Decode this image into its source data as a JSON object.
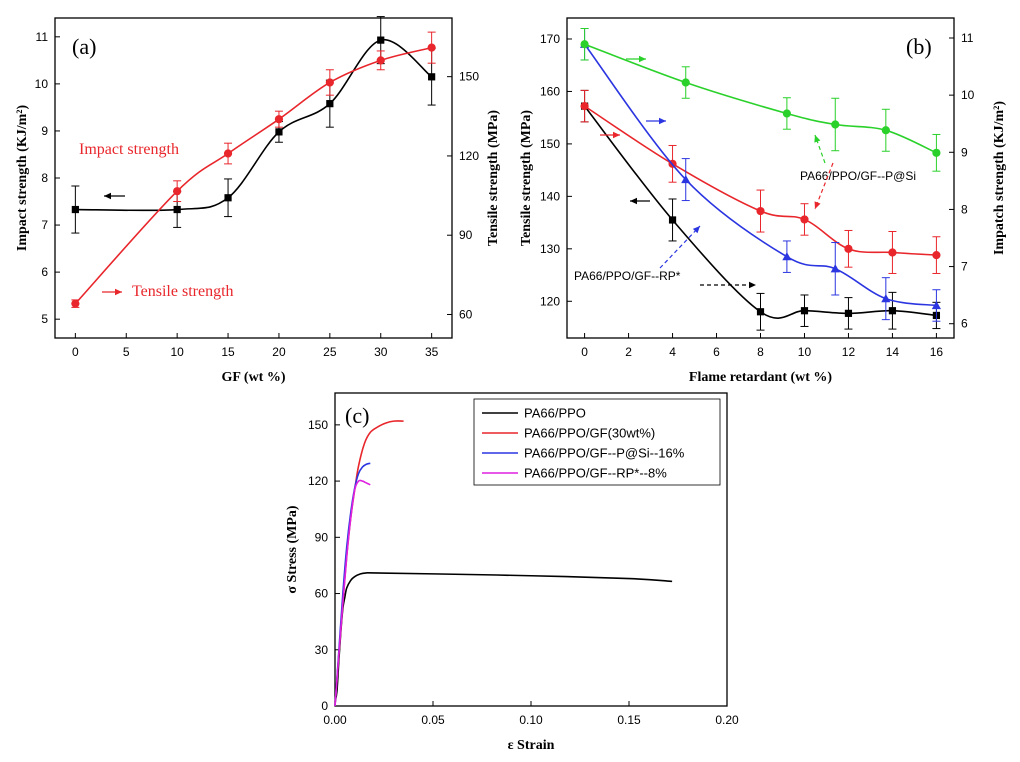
{
  "chart_data": [
    {
      "panel": "(a)",
      "type": "line",
      "xlabel": "GF (wt %)",
      "ylabel_left": "Impact strength (KJ/m²)",
      "ylabel_right": "Tensile strength (MPa)",
      "xlim": [
        -2,
        37
      ],
      "ylim_left": [
        4.6,
        11.4
      ],
      "ylim_right": [
        51.1,
        172.2
      ],
      "xticks": [
        0,
        5,
        10,
        15,
        20,
        25,
        30,
        35
      ],
      "yticks_left": [
        5,
        6,
        7,
        8,
        9,
        10,
        11
      ],
      "yticks_right": [
        60,
        90,
        120,
        150
      ],
      "series": [
        {
          "axis": "left",
          "color": "#000000",
          "marker": "square",
          "x": [
            0,
            10,
            15,
            20,
            25,
            30,
            35
          ],
          "y": [
            7.33,
            7.33,
            7.58,
            8.98,
            9.58,
            10.93,
            10.15
          ],
          "err": [
            0.5,
            0.38,
            0.4,
            0.22,
            0.5,
            0.5,
            0.6
          ]
        },
        {
          "axis": "left",
          "color": "#e8262b",
          "marker": "circle",
          "x": [
            0,
            10,
            15,
            20,
            25,
            30,
            35
          ],
          "y": [
            5.33,
            7.72,
            8.52,
            9.25,
            10.03,
            10.5,
            10.77
          ],
          "err": [
            0.08,
            0.22,
            0.22,
            0.17,
            0.27,
            0.2,
            0.33
          ]
        }
      ],
      "annotations": [
        {
          "text": "Impact strength",
          "color": "#e8262b"
        },
        {
          "text": "Tensile strength",
          "color": "#e8262b"
        }
      ]
    },
    {
      "panel": "(b)",
      "type": "line",
      "xlabel": "Flame retardant (wt %)",
      "ylabel_left": "Tensile strength (MPa)",
      "ylabel_right": "Impatch strength (KJ/m²)",
      "xlim": [
        -0.8,
        16.8
      ],
      "ylim_left": [
        113,
        174
      ],
      "ylim_right": [
        5.75,
        11.35
      ],
      "xticks": [
        0,
        2,
        4,
        6,
        8,
        10,
        12,
        14,
        16
      ],
      "yticks_left": [
        120,
        130,
        140,
        150,
        160,
        170
      ],
      "yticks_right": [
        6,
        7,
        8,
        9,
        10,
        11
      ],
      "series": [
        {
          "axis": "left",
          "color": "#000000",
          "marker": "square",
          "x": [
            0,
            4,
            8,
            10,
            12,
            14,
            16
          ],
          "y": [
            157.2,
            135.5,
            118,
            118.2,
            117.7,
            118.2,
            117.3
          ],
          "err": [
            3,
            4,
            3.5,
            3,
            3,
            3.5,
            2.5
          ]
        },
        {
          "axis": "left",
          "color": "#e8262b",
          "marker": "circle",
          "x": [
            0,
            4,
            8,
            10,
            12,
            14,
            16
          ],
          "y": [
            157.2,
            146.2,
            137.2,
            135.6,
            130,
            129.3,
            128.8
          ],
          "err": [
            3,
            3.5,
            4,
            3,
            3.5,
            4,
            3.5
          ]
        },
        {
          "axis": "left",
          "color": "#2b35e0",
          "marker": "triangle",
          "x": [
            0,
            4.6,
            9.2,
            11.4,
            13.7,
            16
          ],
          "y": [
            169,
            143.2,
            128.5,
            126.2,
            120.5,
            119.2
          ],
          "err": [
            3,
            4,
            3,
            5,
            4,
            3
          ]
        },
        {
          "axis": "left",
          "color": "#2ad12a",
          "marker": "circle",
          "x": [
            0,
            4.6,
            9.2,
            11.4,
            13.7,
            16
          ],
          "y": [
            169,
            161.7,
            155.8,
            153.7,
            152.6,
            148.3
          ],
          "err": [
            3,
            3,
            3,
            5,
            4,
            3.5
          ]
        }
      ],
      "annotations": [
        {
          "text": "PA66/PPO/GF--P@Si",
          "color": "#000000"
        },
        {
          "text": "PA66/PPO/GF--RP*",
          "color": "#000000"
        }
      ]
    },
    {
      "panel": "(c)",
      "type": "line",
      "xlabel": "ε Strain",
      "ylabel": "σ  Stress (MPa)",
      "xlim": [
        0,
        0.2
      ],
      "ylim": [
        0,
        167
      ],
      "xticks": [
        0.0,
        0.05,
        0.1,
        0.15,
        0.2
      ],
      "xtick_labels": [
        "0.00",
        "0.05",
        "0.10",
        "0.15",
        "0.20"
      ],
      "yticks": [
        0,
        30,
        60,
        90,
        120,
        150
      ],
      "legend_position": "top-right",
      "series": [
        {
          "name": "PA66/PPO",
          "color": "#000000",
          "x": [
            0,
            0.001,
            0.002,
            0.003,
            0.004,
            0.005,
            0.006,
            0.008,
            0.01,
            0.013,
            0.016,
            0.02,
            0.05,
            0.1,
            0.15,
            0.172
          ],
          "y": [
            2,
            8,
            25,
            40,
            52,
            58,
            63,
            67,
            69,
            70.5,
            71,
            71,
            70.5,
            69.5,
            68,
            66.5
          ]
        },
        {
          "name": "PA66/PPO/GF(30wt%)",
          "color": "#e8262b",
          "x": [
            0,
            0.002,
            0.004,
            0.006,
            0.008,
            0.01,
            0.012,
            0.015,
            0.018,
            0.022,
            0.026,
            0.03,
            0.035
          ],
          "y": [
            0,
            28,
            55,
            80,
            100,
            115,
            128,
            140,
            146,
            149,
            151,
            152,
            152
          ]
        },
        {
          "name": "PA66/PPO/GF--P@Si--16%",
          "color": "#2b35e0",
          "x": [
            0,
            0.002,
            0.004,
            0.006,
            0.008,
            0.01,
            0.012,
            0.014,
            0.016,
            0.018
          ],
          "y": [
            0,
            30,
            60,
            85,
            103,
            116,
            124,
            127.5,
            129,
            129.5
          ]
        },
        {
          "name": "PA66/PPO/GF--RP*--8%",
          "color": "#e020e0",
          "x": [
            0,
            0.002,
            0.004,
            0.006,
            0.008,
            0.01,
            0.012,
            0.014,
            0.016,
            0.018
          ],
          "y": [
            0,
            28,
            55,
            80,
            100,
            115,
            120,
            120,
            119,
            118
          ]
        }
      ]
    }
  ]
}
